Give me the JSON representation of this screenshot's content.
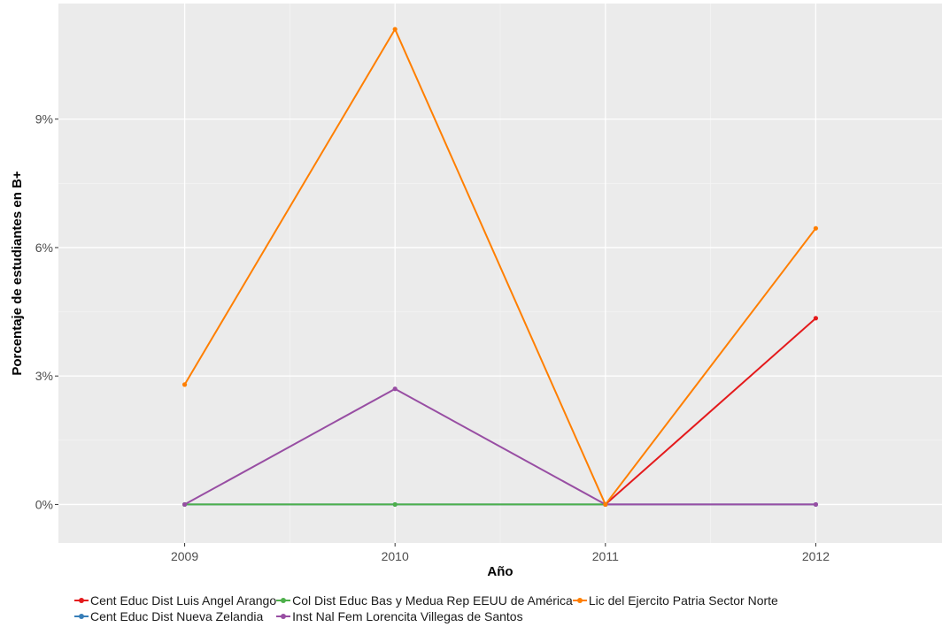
{
  "chart_data": {
    "type": "line",
    "title": "",
    "xlabel": "Año",
    "ylabel": "Porcentaje de estudiantes en B+",
    "x": [
      "2009",
      "2010",
      "2011",
      "2012"
    ],
    "ylim": [
      -0.9,
      11.7
    ],
    "yticks": [
      0,
      3,
      6,
      9
    ],
    "ytick_labels": [
      "0%",
      "3%",
      "6%",
      "9%"
    ],
    "grid": true,
    "legend_position": "bottom",
    "series": [
      {
        "name": "Cent Educ Dist Luis Angel Arango",
        "color": "#E41A1C",
        "values": [
          null,
          null,
          0,
          4.35
        ]
      },
      {
        "name": "Cent Educ Dist Nueva Zelandia",
        "color": "#377EB8",
        "values": [
          0,
          0,
          0,
          0
        ]
      },
      {
        "name": "Col Dist Educ Bas y Medua Rep EEUU de América",
        "color": "#4DAF4A",
        "values": [
          0,
          0,
          0,
          null
        ]
      },
      {
        "name": "Inst Nal Fem Lorencita Villegas de Santos",
        "color": "#984EA3",
        "values": [
          0,
          2.7,
          0,
          0
        ]
      },
      {
        "name": "Lic del Ejercito Patria Sector Norte",
        "color": "#FF7F00",
        "values": [
          2.8,
          11.1,
          0,
          6.45
        ]
      }
    ]
  },
  "legend_rows": [
    [
      0,
      2,
      4
    ],
    [
      1,
      3
    ]
  ]
}
